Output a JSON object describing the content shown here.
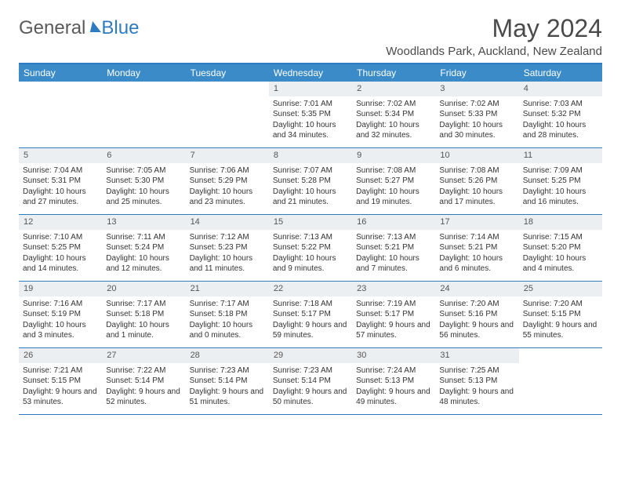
{
  "brand": {
    "part1": "General",
    "part2": "Blue"
  },
  "title": "May 2024",
  "location": "Woodlands Park, Auckland, New Zealand",
  "colors": {
    "accent": "#2f7bbf",
    "header_bg": "#3b8bc9",
    "daynum_bg": "#eceff1"
  },
  "day_names": [
    "Sunday",
    "Monday",
    "Tuesday",
    "Wednesday",
    "Thursday",
    "Friday",
    "Saturday"
  ],
  "weeks": [
    [
      {
        "n": "",
        "empty": true
      },
      {
        "n": "",
        "empty": true
      },
      {
        "n": "",
        "empty": true
      },
      {
        "n": "1",
        "sr": "Sunrise: 7:01 AM",
        "ss": "Sunset: 5:35 PM",
        "dl": "Daylight: 10 hours and 34 minutes."
      },
      {
        "n": "2",
        "sr": "Sunrise: 7:02 AM",
        "ss": "Sunset: 5:34 PM",
        "dl": "Daylight: 10 hours and 32 minutes."
      },
      {
        "n": "3",
        "sr": "Sunrise: 7:02 AM",
        "ss": "Sunset: 5:33 PM",
        "dl": "Daylight: 10 hours and 30 minutes."
      },
      {
        "n": "4",
        "sr": "Sunrise: 7:03 AM",
        "ss": "Sunset: 5:32 PM",
        "dl": "Daylight: 10 hours and 28 minutes."
      }
    ],
    [
      {
        "n": "5",
        "sr": "Sunrise: 7:04 AM",
        "ss": "Sunset: 5:31 PM",
        "dl": "Daylight: 10 hours and 27 minutes."
      },
      {
        "n": "6",
        "sr": "Sunrise: 7:05 AM",
        "ss": "Sunset: 5:30 PM",
        "dl": "Daylight: 10 hours and 25 minutes."
      },
      {
        "n": "7",
        "sr": "Sunrise: 7:06 AM",
        "ss": "Sunset: 5:29 PM",
        "dl": "Daylight: 10 hours and 23 minutes."
      },
      {
        "n": "8",
        "sr": "Sunrise: 7:07 AM",
        "ss": "Sunset: 5:28 PM",
        "dl": "Daylight: 10 hours and 21 minutes."
      },
      {
        "n": "9",
        "sr": "Sunrise: 7:08 AM",
        "ss": "Sunset: 5:27 PM",
        "dl": "Daylight: 10 hours and 19 minutes."
      },
      {
        "n": "10",
        "sr": "Sunrise: 7:08 AM",
        "ss": "Sunset: 5:26 PM",
        "dl": "Daylight: 10 hours and 17 minutes."
      },
      {
        "n": "11",
        "sr": "Sunrise: 7:09 AM",
        "ss": "Sunset: 5:25 PM",
        "dl": "Daylight: 10 hours and 16 minutes."
      }
    ],
    [
      {
        "n": "12",
        "sr": "Sunrise: 7:10 AM",
        "ss": "Sunset: 5:25 PM",
        "dl": "Daylight: 10 hours and 14 minutes."
      },
      {
        "n": "13",
        "sr": "Sunrise: 7:11 AM",
        "ss": "Sunset: 5:24 PM",
        "dl": "Daylight: 10 hours and 12 minutes."
      },
      {
        "n": "14",
        "sr": "Sunrise: 7:12 AM",
        "ss": "Sunset: 5:23 PM",
        "dl": "Daylight: 10 hours and 11 minutes."
      },
      {
        "n": "15",
        "sr": "Sunrise: 7:13 AM",
        "ss": "Sunset: 5:22 PM",
        "dl": "Daylight: 10 hours and 9 minutes."
      },
      {
        "n": "16",
        "sr": "Sunrise: 7:13 AM",
        "ss": "Sunset: 5:21 PM",
        "dl": "Daylight: 10 hours and 7 minutes."
      },
      {
        "n": "17",
        "sr": "Sunrise: 7:14 AM",
        "ss": "Sunset: 5:21 PM",
        "dl": "Daylight: 10 hours and 6 minutes."
      },
      {
        "n": "18",
        "sr": "Sunrise: 7:15 AM",
        "ss": "Sunset: 5:20 PM",
        "dl": "Daylight: 10 hours and 4 minutes."
      }
    ],
    [
      {
        "n": "19",
        "sr": "Sunrise: 7:16 AM",
        "ss": "Sunset: 5:19 PM",
        "dl": "Daylight: 10 hours and 3 minutes."
      },
      {
        "n": "20",
        "sr": "Sunrise: 7:17 AM",
        "ss": "Sunset: 5:18 PM",
        "dl": "Daylight: 10 hours and 1 minute."
      },
      {
        "n": "21",
        "sr": "Sunrise: 7:17 AM",
        "ss": "Sunset: 5:18 PM",
        "dl": "Daylight: 10 hours and 0 minutes."
      },
      {
        "n": "22",
        "sr": "Sunrise: 7:18 AM",
        "ss": "Sunset: 5:17 PM",
        "dl": "Daylight: 9 hours and 59 minutes."
      },
      {
        "n": "23",
        "sr": "Sunrise: 7:19 AM",
        "ss": "Sunset: 5:17 PM",
        "dl": "Daylight: 9 hours and 57 minutes."
      },
      {
        "n": "24",
        "sr": "Sunrise: 7:20 AM",
        "ss": "Sunset: 5:16 PM",
        "dl": "Daylight: 9 hours and 56 minutes."
      },
      {
        "n": "25",
        "sr": "Sunrise: 7:20 AM",
        "ss": "Sunset: 5:15 PM",
        "dl": "Daylight: 9 hours and 55 minutes."
      }
    ],
    [
      {
        "n": "26",
        "sr": "Sunrise: 7:21 AM",
        "ss": "Sunset: 5:15 PM",
        "dl": "Daylight: 9 hours and 53 minutes."
      },
      {
        "n": "27",
        "sr": "Sunrise: 7:22 AM",
        "ss": "Sunset: 5:14 PM",
        "dl": "Daylight: 9 hours and 52 minutes."
      },
      {
        "n": "28",
        "sr": "Sunrise: 7:23 AM",
        "ss": "Sunset: 5:14 PM",
        "dl": "Daylight: 9 hours and 51 minutes."
      },
      {
        "n": "29",
        "sr": "Sunrise: 7:23 AM",
        "ss": "Sunset: 5:14 PM",
        "dl": "Daylight: 9 hours and 50 minutes."
      },
      {
        "n": "30",
        "sr": "Sunrise: 7:24 AM",
        "ss": "Sunset: 5:13 PM",
        "dl": "Daylight: 9 hours and 49 minutes."
      },
      {
        "n": "31",
        "sr": "Sunrise: 7:25 AM",
        "ss": "Sunset: 5:13 PM",
        "dl": "Daylight: 9 hours and 48 minutes."
      },
      {
        "n": "",
        "empty": true
      }
    ]
  ]
}
